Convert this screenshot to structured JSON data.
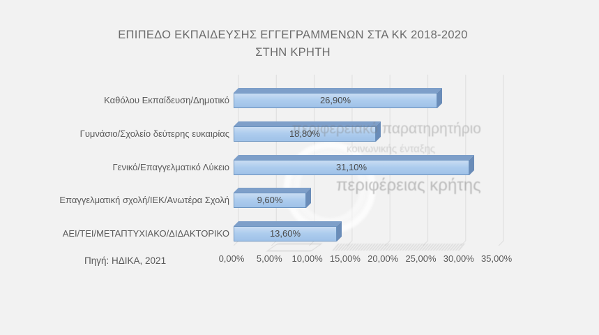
{
  "title": {
    "line1": "ΕΠΙΠΕΔΟ ΕΚΠΑΙΔΕΥΣΗΣ ΕΓΓΕΓΡΑΜΜΕΝΩΝ ΣΤΑ ΚΚ 2018-2020",
    "line2": "ΣΤΗΝ ΚΡΗΤΗ"
  },
  "source_note": "Πηγή: ΗΔΙΚΑ, 2021",
  "watermark": {
    "line1": "περιφερειακό παρατηρητήριο",
    "line2": "κοινωνικής ένταξης",
    "line3": "περιφέρειας κρήτης"
  },
  "chart_data": {
    "type": "bar",
    "orientation": "horizontal",
    "title": "ΕΠΙΠΕΔΟ ΕΚΠΑΙΔΕΥΣΗΣ ΕΓΓΕΓΡΑΜΜΕΝΩΝ ΣΤΑ ΚΚ 2018-2020 ΣΤΗΝ ΚΡΗΤΗ",
    "categories": [
      "Καθόλου Εκπαίδευση/Δημοτικό",
      "Γυμνάσιο/Σχολείο δεύτερης ευκαιρίας",
      "Γενικό/Επαγγελματικό Λύκειο",
      "Επαγγελματική σχολή/ΙΕΚ/Ανωτέρα Σχολή",
      "ΑΕΙ/ΤΕΙ/ΜΕΤΑΠΤΥΧΙΑΚΟ/ΔΙΔΑΚΤΟΡΙΚΟ"
    ],
    "values": [
      26.9,
      18.8,
      31.1,
      9.6,
      13.6
    ],
    "value_labels": [
      "26,90%",
      "18,80%",
      "31,10%",
      "9,60%",
      "13,60%"
    ],
    "x_ticks": [
      "0,00%",
      "5,00%",
      "10,00%",
      "15,00%",
      "20,00%",
      "25,00%",
      "30,00%",
      "35,00%"
    ],
    "x_tick_values": [
      0,
      5,
      10,
      15,
      20,
      25,
      30,
      35
    ],
    "xlim": [
      0,
      35
    ],
    "grid": "vertical",
    "legend": "none",
    "style_3d": true,
    "colors": {
      "bar_front": "#a9c9ec",
      "bar_front_light": "#c9ddf3",
      "bar_top": "#7e9fc9",
      "bar_side": "#6a8cb8",
      "bar_border": "#6b93c0",
      "gridline": "#e0e0e0",
      "background": "#f2f2f2",
      "text": "#595959",
      "title_text": "#6b6b6b"
    }
  }
}
